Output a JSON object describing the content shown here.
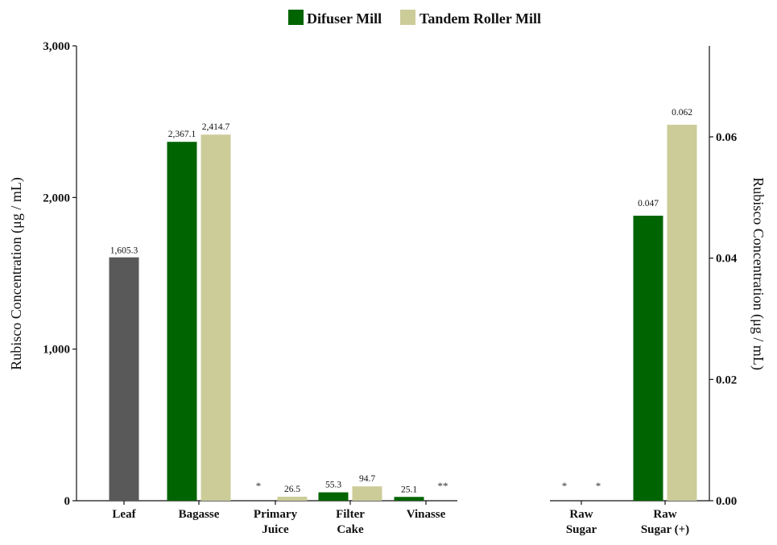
{
  "legend": {
    "items": [
      {
        "name": "Difuser Mill",
        "color": "#006400"
      },
      {
        "name": "Tandem Roller Mill",
        "color": "#cccc99"
      }
    ]
  },
  "chart_data": [
    {
      "type": "bar",
      "title": "",
      "xlabel": "",
      "ylabel": "Rubisco Concentration (μg / mL)",
      "ylim": [
        0,
        3000
      ],
      "yticks": [
        "0",
        "1,000",
        "2,000",
        "3,000"
      ],
      "ytick_values": [
        0,
        1000,
        2000,
        3000
      ],
      "categories": [
        "Leaf",
        "Bagasse",
        "Primary Juice",
        "Filter Cake",
        "Vinasse"
      ],
      "category_lines": [
        [
          "Leaf"
        ],
        [
          "Bagasse"
        ],
        [
          "Primary",
          "Juice"
        ],
        [
          "Filter",
          "Cake"
        ],
        [
          "Vinasse"
        ]
      ],
      "leaf": {
        "value": 1605.3,
        "label": "1,605.3",
        "color": "#595959"
      },
      "series": [
        {
          "name": "Difuser Mill",
          "color": "#006400",
          "values": [
            null,
            2367.1,
            null,
            55.3,
            25.1
          ],
          "labels": [
            "",
            "2,367.1",
            "*",
            "55.3",
            "25.1"
          ]
        },
        {
          "name": "Tandem Roller Mill",
          "color": "#cccc99",
          "values": [
            null,
            2414.7,
            26.5,
            94.7,
            null
          ],
          "labels": [
            "",
            "2,414.7",
            "26.5",
            "94.7",
            "**"
          ]
        }
      ],
      "grid": false
    },
    {
      "type": "bar",
      "title": "",
      "xlabel": "",
      "ylabel": "Rubisco Concentration (μg / mL)",
      "ylim": [
        0,
        0.075
      ],
      "yticks": [
        "0.00",
        "0.02",
        "0.04",
        "0.06"
      ],
      "ytick_values": [
        0,
        0.02,
        0.04,
        0.06
      ],
      "y_axis_side": "right",
      "categories": [
        "Raw Sugar",
        "Raw Sugar (+)"
      ],
      "category_lines": [
        [
          "Raw",
          "Sugar"
        ],
        [
          "Raw",
          "Sugar (+)"
        ]
      ],
      "series": [
        {
          "name": "Difuser Mill",
          "color": "#006400",
          "values": [
            null,
            0.047
          ],
          "labels": [
            "*",
            "0.047"
          ]
        },
        {
          "name": "Tandem Roller Mill",
          "color": "#cccc99",
          "values": [
            null,
            0.062
          ],
          "labels": [
            "*",
            "0.062"
          ]
        }
      ],
      "grid": false
    }
  ]
}
